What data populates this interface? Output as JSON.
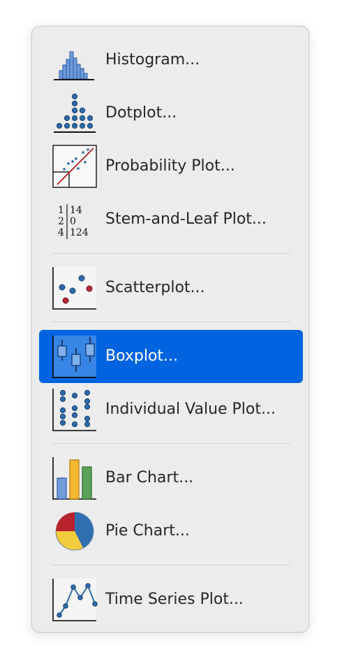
{
  "menu": {
    "items": [
      {
        "label": "Histogram..."
      },
      {
        "label": "Dotplot..."
      },
      {
        "label": "Probability Plot..."
      },
      {
        "label": "Stem-and-Leaf Plot..."
      },
      {
        "label": "Scatterplot..."
      },
      {
        "label": "Boxplot..."
      },
      {
        "label": "Individual Value Plot..."
      },
      {
        "label": "Bar Chart..."
      },
      {
        "label": "Pie Chart..."
      },
      {
        "label": "Time Series Plot..."
      }
    ],
    "selected_item": "Boxplot...",
    "stem_leaf_icon": {
      "rows": [
        {
          "stem": "1",
          "leaf": "14"
        },
        {
          "stem": "2",
          "leaf": "0"
        },
        {
          "stem": "4",
          "leaf": "124"
        }
      ]
    }
  },
  "colors": {
    "menu_background": "#ececec",
    "selection": "#0064e1",
    "separator": "#d2d2d2"
  }
}
